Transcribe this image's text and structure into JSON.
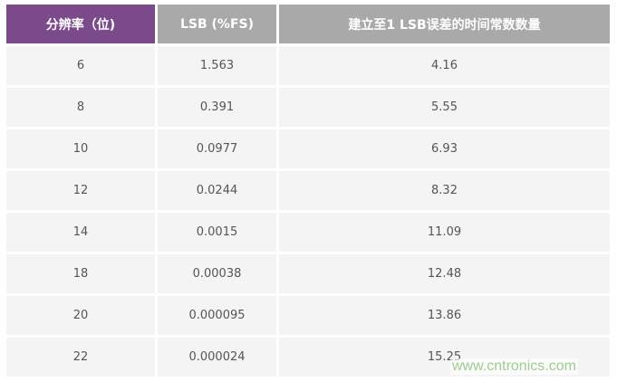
{
  "table": {
    "headers": [
      "分辨率（位)",
      "LSB (%FS)",
      "建立至1 LSB误差的时间常数数量"
    ],
    "rows": [
      [
        "6",
        "1.563",
        "4.16"
      ],
      [
        "8",
        "0.391",
        "5.55"
      ],
      [
        "10",
        "0.0977",
        "6.93"
      ],
      [
        "12",
        "0.0244",
        "8.32"
      ],
      [
        "14",
        "0.0015",
        "11.09"
      ],
      [
        "18",
        "0.00038",
        "12.48"
      ],
      [
        "20",
        "0.000095",
        "13.86"
      ],
      [
        "22",
        "0.000024",
        "15.25"
      ]
    ]
  },
  "watermark": "www.cntronics.com",
  "colors": {
    "header_accent": "#7b4a8b",
    "header_gray": "#a9a9a9",
    "row_bg": "#f4f4f4"
  }
}
